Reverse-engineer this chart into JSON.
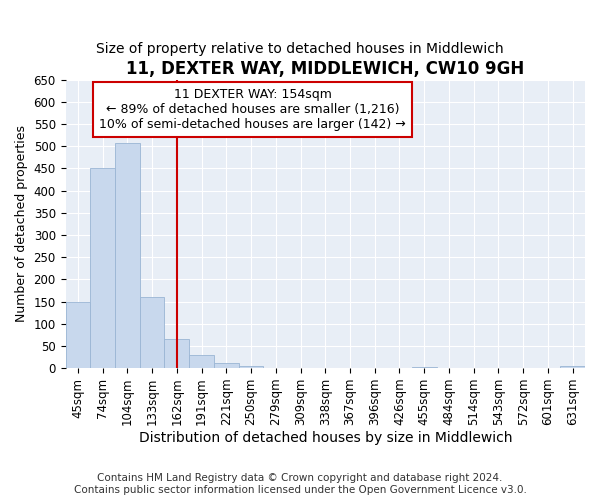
{
  "title": "11, DEXTER WAY, MIDDLEWICH, CW10 9GH",
  "subtitle": "Size of property relative to detached houses in Middlewich",
  "xlabel": "Distribution of detached houses by size in Middlewich",
  "ylabel": "Number of detached properties",
  "footer_line1": "Contains HM Land Registry data © Crown copyright and database right 2024.",
  "footer_line2": "Contains public sector information licensed under the Open Government Licence v3.0.",
  "bins": [
    "45sqm",
    "74sqm",
    "104sqm",
    "133sqm",
    "162sqm",
    "191sqm",
    "221sqm",
    "250sqm",
    "279sqm",
    "309sqm",
    "338sqm",
    "367sqm",
    "396sqm",
    "426sqm",
    "455sqm",
    "484sqm",
    "514sqm",
    "543sqm",
    "572sqm",
    "601sqm",
    "631sqm"
  ],
  "values": [
    150,
    450,
    508,
    160,
    65,
    30,
    12,
    5,
    0,
    0,
    0,
    0,
    0,
    0,
    3,
    0,
    0,
    0,
    0,
    0,
    4
  ],
  "bar_color": "#c8d8ed",
  "bar_edge_color": "#9ab5d4",
  "vline_x": 4.0,
  "vline_color": "#cc0000",
  "annotation_line1": "11 DEXTER WAY: 154sqm",
  "annotation_line2": "← 89% of detached houses are smaller (1,216)",
  "annotation_line3": "10% of semi-detached houses are larger (142) →",
  "annotation_box_facecolor": "#ffffff",
  "annotation_box_edgecolor": "#cc0000",
  "ylim": [
    0,
    650
  ],
  "yticks": [
    0,
    50,
    100,
    150,
    200,
    250,
    300,
    350,
    400,
    450,
    500,
    550,
    600,
    650
  ],
  "plot_bg_color": "#e8eef6",
  "grid_color": "#ffffff",
  "title_fontsize": 12,
  "subtitle_fontsize": 10,
  "xlabel_fontsize": 10,
  "ylabel_fontsize": 9,
  "tick_fontsize": 8.5,
  "annotation_fontsize": 9,
  "footer_fontsize": 7.5
}
